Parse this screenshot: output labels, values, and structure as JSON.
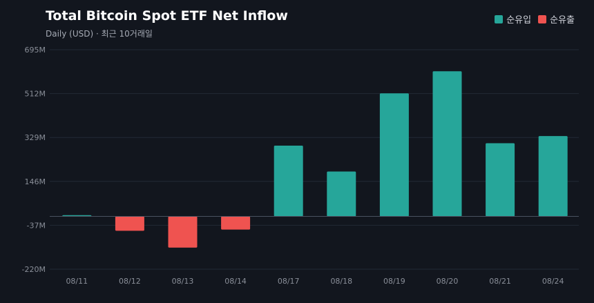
{
  "header": {
    "title": "Total Bitcoin Spot ETF Net Inflow",
    "subtitle": "Daily (USD) · 최근 10거래일"
  },
  "legend": {
    "items": [
      {
        "label": "순유입",
        "color": "#26a69a"
      },
      {
        "label": "순유출",
        "color": "#ef5350"
      }
    ]
  },
  "chart_data": {
    "type": "bar",
    "categories": [
      "08/11",
      "08/12",
      "08/13",
      "08/14",
      "08/17",
      "08/18",
      "08/19",
      "08/20",
      "08/21",
      "08/24"
    ],
    "values": [
      5,
      -60,
      -130,
      -55,
      295,
      187,
      513,
      605,
      305,
      335
    ],
    "y_ticks": [
      695,
      512,
      329,
      146,
      -37,
      -220
    ],
    "y_tick_labels": [
      "695M",
      "512M",
      "329M",
      "146M",
      "-37M",
      "-220M"
    ],
    "ylim": [
      -220,
      695
    ],
    "positive_color": "#26a69a",
    "negative_color": "#ef5350",
    "grid": true,
    "legend_position": "top-right"
  }
}
